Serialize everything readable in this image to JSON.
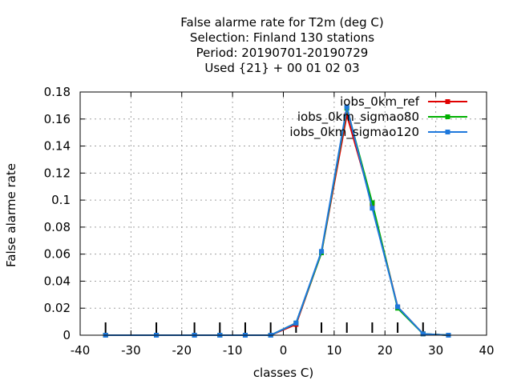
{
  "chart_data": {
    "type": "line",
    "title_lines": [
      "False alarme rate  for T2m (deg C)",
      "Selection: Finland     130 stations",
      "Period: 20190701-20190729",
      "Used {21} + 00 01 02 03"
    ],
    "xlabel": "classes C)",
    "ylabel": "False alarme rate",
    "xlim": [
      -40,
      40
    ],
    "ylim": [
      0,
      0.18
    ],
    "x_ticks": [
      -40,
      -30,
      -20,
      -10,
      0,
      10,
      20,
      30,
      40
    ],
    "x_tick_labels": [
      "-40",
      "-30",
      "-20",
      "-10",
      "0",
      "10",
      "20",
      "30",
      "40"
    ],
    "y_ticks": [
      0,
      0.02,
      0.04,
      0.06,
      0.08,
      0.1,
      0.12,
      0.14,
      0.16,
      0.18
    ],
    "y_tick_labels": [
      "0",
      "0.02",
      "0.04",
      "0.06",
      "0.08",
      "0.1",
      "0.12",
      "0.14",
      "0.16",
      "0.18"
    ],
    "grid": true,
    "legend_position": "top-right",
    "class_markers": [
      -35,
      -25,
      -17.5,
      -12.5,
      -7.5,
      -2.5,
      2.5,
      7.5,
      12.5,
      17.5,
      22.5,
      27.5
    ],
    "x": [
      -35,
      -25,
      -17.5,
      -12.5,
      -7.5,
      -2.5,
      2.5,
      7.5,
      12.5,
      17.5,
      22.5,
      27.5,
      32.5
    ],
    "series": [
      {
        "name": "iobs_0km_ref",
        "color": "#e00000",
        "values": [
          0,
          0,
          0,
          0,
          0,
          0,
          0.008,
          0.061,
          0.163,
          0.097,
          0.021,
          0.001,
          0
        ]
      },
      {
        "name": "iobs_0km_sigmao80",
        "color": "#00b000",
        "values": [
          0,
          0,
          0,
          0,
          0,
          0,
          0.009,
          0.061,
          0.168,
          0.098,
          0.02,
          0.001,
          0
        ]
      },
      {
        "name": "iobs_0km_sigmao120",
        "color": "#1e78dc",
        "values": [
          0,
          0,
          0,
          0,
          0,
          0,
          0.009,
          0.062,
          0.169,
          0.094,
          0.021,
          0.001,
          0
        ]
      }
    ]
  }
}
